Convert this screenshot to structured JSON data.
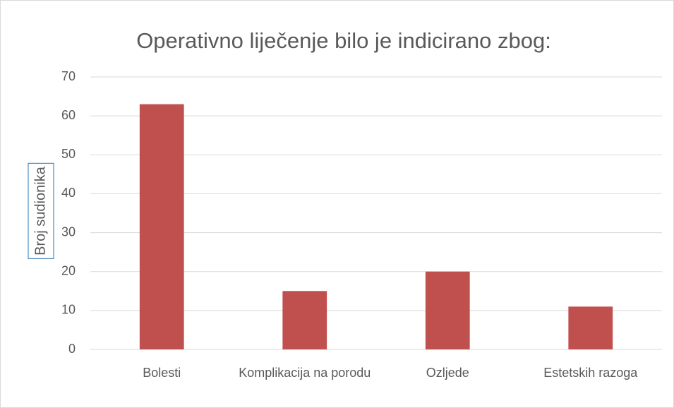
{
  "chart_data": {
    "type": "bar",
    "title": "Operativno liječenje bilo je indicirano zbog:",
    "y_label": "Broj sudionika",
    "categories": [
      "Bolesti",
      "Komplikacija na porodu",
      "Ozljede",
      "Estetskih razoga"
    ],
    "values": [
      63,
      15,
      20,
      11
    ],
    "color": "#c0504d",
    "ylim": [
      0,
      70
    ],
    "yticks": [
      0,
      10,
      20,
      30,
      40,
      50,
      60,
      70
    ],
    "grid": true
  }
}
